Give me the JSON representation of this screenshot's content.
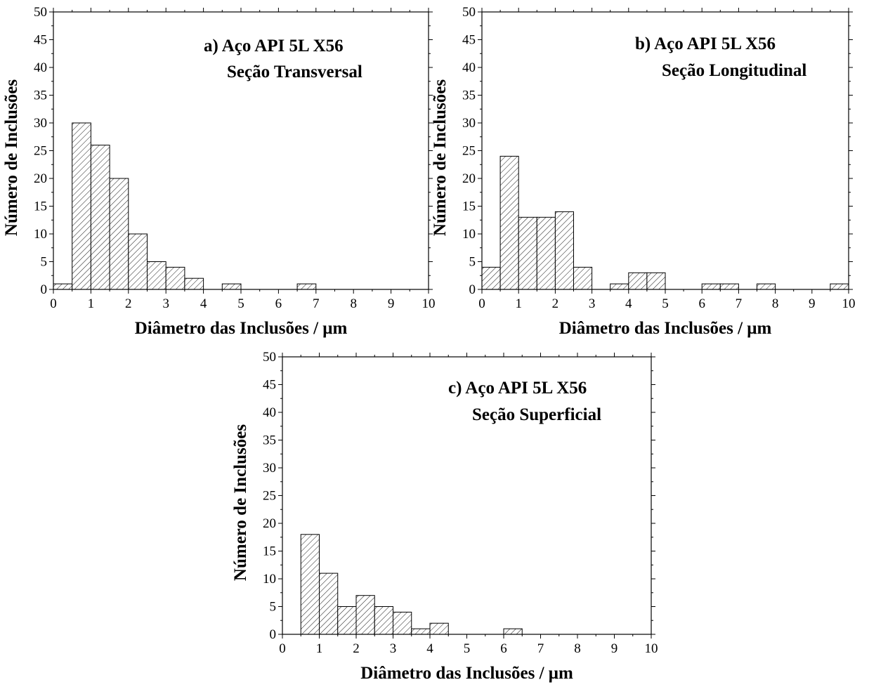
{
  "chart_data": [
    {
      "type": "bar",
      "panel": "a",
      "annotation_line1": "a) Aço API 5L X56",
      "annotation_line2": "Seção Transversal",
      "xlabel": "Diâmetro das Inclusões / μm",
      "ylabel": "Número de Inclusões",
      "xlim": [
        0,
        10
      ],
      "ylim": [
        0,
        50
      ],
      "xticks": [
        "0",
        "1",
        "2",
        "3",
        "4",
        "5",
        "6",
        "7",
        "8",
        "9",
        "10"
      ],
      "yticks": [
        "0",
        "5",
        "10",
        "15",
        "20",
        "25",
        "30",
        "35",
        "40",
        "45",
        "50"
      ],
      "bin_width": 0.5,
      "bins": [
        {
          "start": 0.0,
          "value": 1
        },
        {
          "start": 0.5,
          "value": 30
        },
        {
          "start": 1.0,
          "value": 26
        },
        {
          "start": 1.5,
          "value": 20
        },
        {
          "start": 2.0,
          "value": 10
        },
        {
          "start": 2.5,
          "value": 5
        },
        {
          "start": 3.0,
          "value": 4
        },
        {
          "start": 3.5,
          "value": 2
        },
        {
          "start": 4.5,
          "value": 1
        },
        {
          "start": 6.5,
          "value": 1
        }
      ]
    },
    {
      "type": "bar",
      "panel": "b",
      "annotation_line1": "b)  Aço API 5L X56",
      "annotation_line2": "Seção Longitudinal",
      "xlabel": "Diâmetro das Inclusões / μm",
      "ylabel": "Número de Inclusões",
      "xlim": [
        0,
        10
      ],
      "ylim": [
        0,
        50
      ],
      "xticks": [
        "0",
        "1",
        "2",
        "3",
        "4",
        "5",
        "6",
        "7",
        "8",
        "9",
        "10"
      ],
      "yticks": [
        "0",
        "5",
        "10",
        "15",
        "20",
        "25",
        "30",
        "35",
        "40",
        "45",
        "50"
      ],
      "bin_width": 0.5,
      "bins": [
        {
          "start": 0.0,
          "value": 4
        },
        {
          "start": 0.5,
          "value": 24
        },
        {
          "start": 1.0,
          "value": 13
        },
        {
          "start": 1.5,
          "value": 13
        },
        {
          "start": 2.0,
          "value": 14
        },
        {
          "start": 2.5,
          "value": 4
        },
        {
          "start": 3.5,
          "value": 1
        },
        {
          "start": 4.0,
          "value": 3
        },
        {
          "start": 4.5,
          "value": 3
        },
        {
          "start": 6.0,
          "value": 1
        },
        {
          "start": 6.5,
          "value": 1
        },
        {
          "start": 7.5,
          "value": 1
        },
        {
          "start": 9.5,
          "value": 1
        }
      ]
    },
    {
      "type": "bar",
      "panel": "c",
      "annotation_line1": "c)  Aço API 5L X56",
      "annotation_line2": "Seção Superficial",
      "xlabel": "Diâmetro das Inclusões / μm",
      "ylabel": "Número de Inclusões",
      "xlim": [
        0,
        10
      ],
      "ylim": [
        0,
        50
      ],
      "xticks": [
        "0",
        "1",
        "2",
        "3",
        "4",
        "5",
        "6",
        "7",
        "8",
        "9",
        "10"
      ],
      "yticks": [
        "0",
        "5",
        "10",
        "15",
        "20",
        "25",
        "30",
        "35",
        "40",
        "45",
        "50"
      ],
      "bin_width": 0.5,
      "bins": [
        {
          "start": 0.5,
          "value": 18
        },
        {
          "start": 1.0,
          "value": 11
        },
        {
          "start": 1.5,
          "value": 5
        },
        {
          "start": 2.0,
          "value": 7
        },
        {
          "start": 2.5,
          "value": 5
        },
        {
          "start": 3.0,
          "value": 4
        },
        {
          "start": 3.5,
          "value": 1
        },
        {
          "start": 4.0,
          "value": 2
        },
        {
          "start": 6.0,
          "value": 1
        }
      ]
    }
  ]
}
